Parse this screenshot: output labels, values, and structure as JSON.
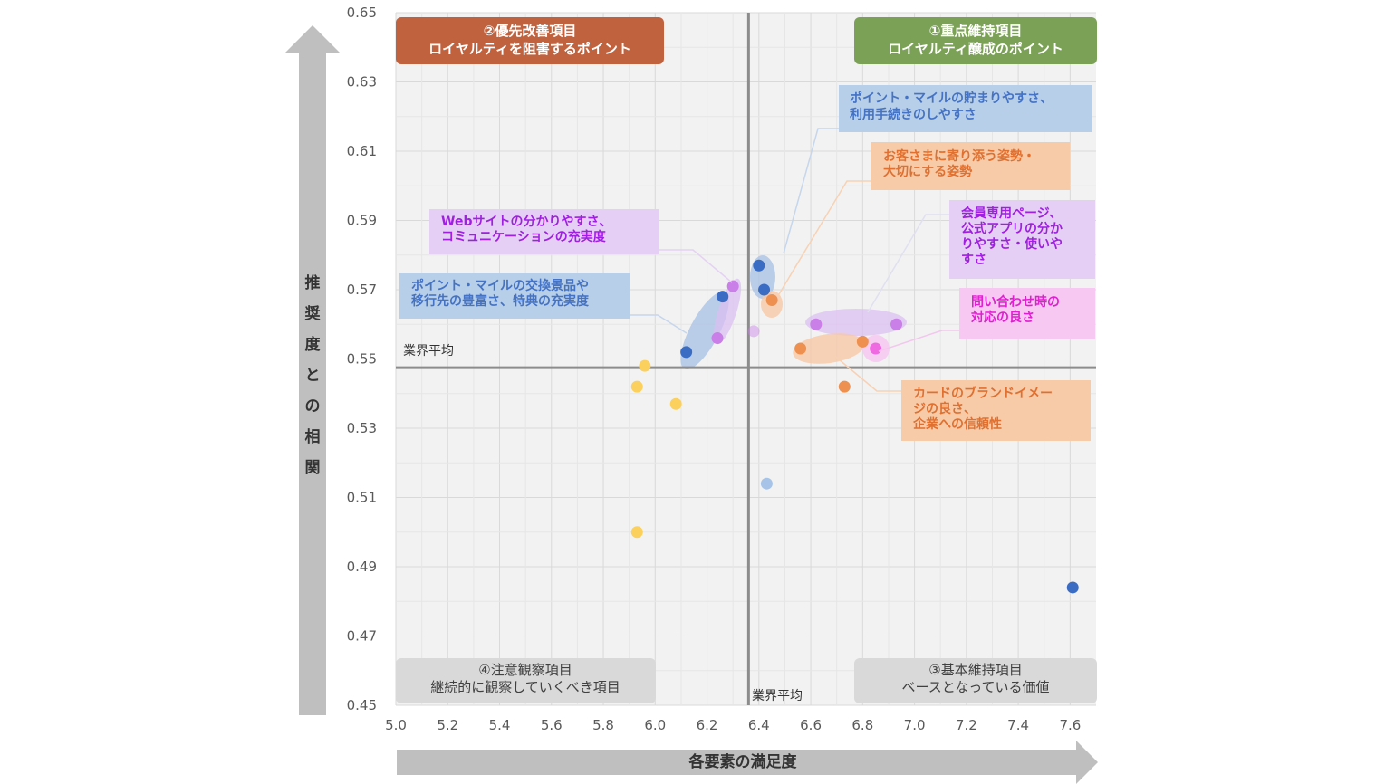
{
  "chart_data": {
    "type": "scatter",
    "xlabel": "各要素の満足度",
    "ylabel": "推奨度との相関",
    "xlim": [
      5.0,
      7.7
    ],
    "ylim": [
      0.45,
      0.65
    ],
    "x_ticks": [
      "5.0",
      "5.2",
      "5.4",
      "5.6",
      "5.8",
      "6.0",
      "6.2",
      "6.4",
      "6.6",
      "6.8",
      "7.0",
      "7.2",
      "7.4",
      "7.6"
    ],
    "y_ticks": [
      "0.65",
      "0.63",
      "0.61",
      "0.59",
      "0.57",
      "0.55",
      "0.53",
      "0.51",
      "0.49",
      "0.47",
      "0.45"
    ],
    "average_x": 6.36,
    "average_y": 0.5475,
    "average_label": "業界平均",
    "colors": {
      "grid": "#d9d9d9",
      "avg_line": "#8c8c8c",
      "plot_bg": "#f2f2f2",
      "blue": "#3a6cc4",
      "lightblue": "#a7c4e8",
      "purple": "#c97ee8",
      "orange": "#ee9050",
      "yellow": "#fbd05c",
      "pink": "#ef6ae0"
    },
    "quadrants": [
      {
        "id": "q1",
        "line1": "①重点維持項目",
        "line2": "ロイヤルティ醸成のポイント",
        "bg": "#7ba156",
        "fg": "#ffffff"
      },
      {
        "id": "q2",
        "line1": "②優先改善項目",
        "line2": "ロイヤルティを阻害するポイント",
        "bg": "#c0623e",
        "fg": "#ffffff"
      },
      {
        "id": "q3",
        "line1": "③基本維持項目",
        "line2": "ベースとなっている価値",
        "bg": "#d9d9d9",
        "fg": "#404040"
      },
      {
        "id": "q4",
        "line1": "④注意観察項目",
        "line2": "継続的に観察していくべき項目",
        "bg": "#d9d9d9",
        "fg": "#404040"
      }
    ],
    "callouts": [
      {
        "id": "mile-accumulate",
        "lines": [
          "ポイント・マイルの貯まりやすさ、",
          "利用手続きのしやすさ"
        ],
        "bg": "#b7cfe9",
        "fg": "#4472c4"
      },
      {
        "id": "customer-attitude",
        "lines": [
          "お客さまに寄り添う姿勢・",
          "大切にする姿勢"
        ],
        "bg": "#f8cba8",
        "fg": "#e07030"
      },
      {
        "id": "member-page",
        "lines": [
          "会員専用ページ、",
          "公式アプリの分か",
          "りやすさ・使いや",
          "すさ"
        ],
        "bg": "#e5cff5",
        "fg": "#a020e0"
      },
      {
        "id": "website",
        "lines": [
          "Webサイトの分かりやすさ、",
          "コミュニケーションの充実度"
        ],
        "bg": "#e5cff5",
        "fg": "#a020e0"
      },
      {
        "id": "mile-exchange",
        "lines": [
          "ポイント・マイルの交換景品や",
          "移行先の豊富さ、特典の充実度"
        ],
        "bg": "#b7cfe9",
        "fg": "#4472c4"
      },
      {
        "id": "inquiry",
        "lines": [
          "問い合わせ時の",
          "対応の良さ"
        ],
        "bg": "#f7c8f2",
        "fg": "#e020d0"
      },
      {
        "id": "brand",
        "lines": [
          "カードのブランドイメー",
          "ジの良さ、",
          "企業への信頼性"
        ],
        "bg": "#f8cba8",
        "fg": "#e07030"
      }
    ],
    "points": [
      {
        "x": 6.12,
        "y": 0.552,
        "color": "blue"
      },
      {
        "x": 6.26,
        "y": 0.568,
        "color": "blue"
      },
      {
        "x": 6.4,
        "y": 0.577,
        "color": "blue"
      },
      {
        "x": 6.42,
        "y": 0.57,
        "color": "blue"
      },
      {
        "x": 7.61,
        "y": 0.484,
        "color": "blue"
      },
      {
        "x": 6.3,
        "y": 0.571,
        "color": "purple"
      },
      {
        "x": 6.24,
        "y": 0.556,
        "color": "purple"
      },
      {
        "x": 6.38,
        "y": 0.558,
        "color": "purple",
        "faint": true
      },
      {
        "x": 6.62,
        "y": 0.56,
        "color": "purple"
      },
      {
        "x": 6.93,
        "y": 0.56,
        "color": "purple"
      },
      {
        "x": 6.45,
        "y": 0.567,
        "color": "orange"
      },
      {
        "x": 6.56,
        "y": 0.553,
        "color": "orange"
      },
      {
        "x": 6.8,
        "y": 0.555,
        "color": "orange"
      },
      {
        "x": 6.73,
        "y": 0.542,
        "color": "orange"
      },
      {
        "x": 6.85,
        "y": 0.553,
        "color": "pink"
      },
      {
        "x": 5.96,
        "y": 0.548,
        "color": "yellow"
      },
      {
        "x": 5.93,
        "y": 0.542,
        "color": "yellow"
      },
      {
        "x": 6.08,
        "y": 0.537,
        "color": "yellow"
      },
      {
        "x": 5.93,
        "y": 0.5,
        "color": "yellow"
      },
      {
        "x": 6.43,
        "y": 0.514,
        "color": "lightblue"
      }
    ]
  }
}
